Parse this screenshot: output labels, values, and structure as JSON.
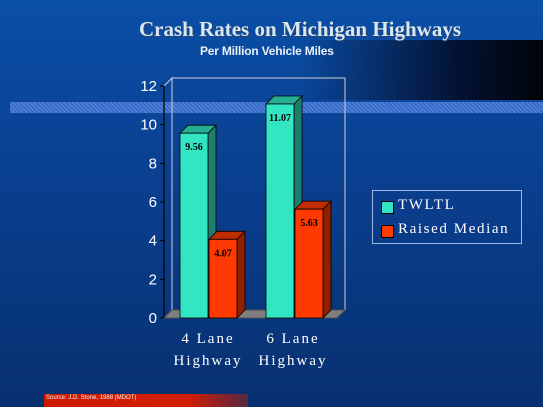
{
  "chart_data": {
    "type": "bar",
    "title": "Crash Rates on Michigan Highways",
    "subtitle": "Per Million Vehicle Miles",
    "categories": [
      "4 Lane Highway",
      "6 Lane Highway"
    ],
    "category_lines": [
      [
        "4 Lane",
        "Highway"
      ],
      [
        "6 Lane",
        "Highway"
      ]
    ],
    "series": [
      {
        "name": "TWLTL",
        "values": [
          9.56,
          11.07
        ],
        "labels": [
          "9.56",
          "11.07"
        ],
        "color": "#33e6c3"
      },
      {
        "name": "Raised Median",
        "values": [
          4.07,
          5.63
        ],
        "labels": [
          "4.07",
          "5.63"
        ],
        "color": "#ff3a00"
      }
    ],
    "ylim": [
      0,
      12
    ],
    "yticks": [
      "0",
      "2",
      "4",
      "6",
      "8",
      "10",
      "12"
    ],
    "xlabel": "",
    "ylabel": "",
    "grid": false,
    "legend_position": "right",
    "style": "3d"
  },
  "source_note": "Source: J.D. Stone, 1988 (MDOT)"
}
